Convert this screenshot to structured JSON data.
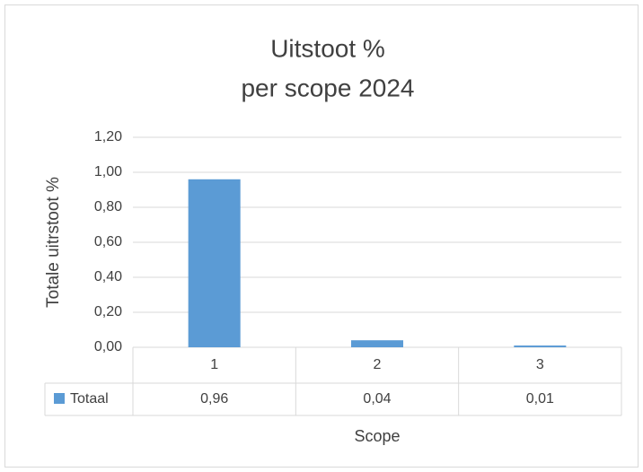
{
  "chart_data": {
    "type": "bar",
    "title": [
      "Uitstoot %",
      "per scope 2024"
    ],
    "y_label": "Totale uitrstoot  %",
    "x_label": "Scope",
    "categories": [
      "1",
      "2",
      "3"
    ],
    "series": [
      {
        "name": "Totaal",
        "color": "#5b9bd5",
        "values": [
          0.96,
          0.04,
          0.01
        ],
        "value_labels": [
          "0,96",
          "0,04",
          "0,01"
        ]
      }
    ],
    "ylim": [
      0,
      1.2
    ],
    "yticks": [
      {
        "value": 0,
        "label": "0,00"
      },
      {
        "value": 0.2,
        "label": "0,20"
      },
      {
        "value": 0.4,
        "label": "0,40"
      },
      {
        "value": 0.6,
        "label": "0,60"
      },
      {
        "value": 0.8,
        "label": "0,80"
      },
      {
        "value": 1,
        "label": "1,00"
      },
      {
        "value": 1.2,
        "label": "1,20"
      }
    ],
    "grid": true
  }
}
